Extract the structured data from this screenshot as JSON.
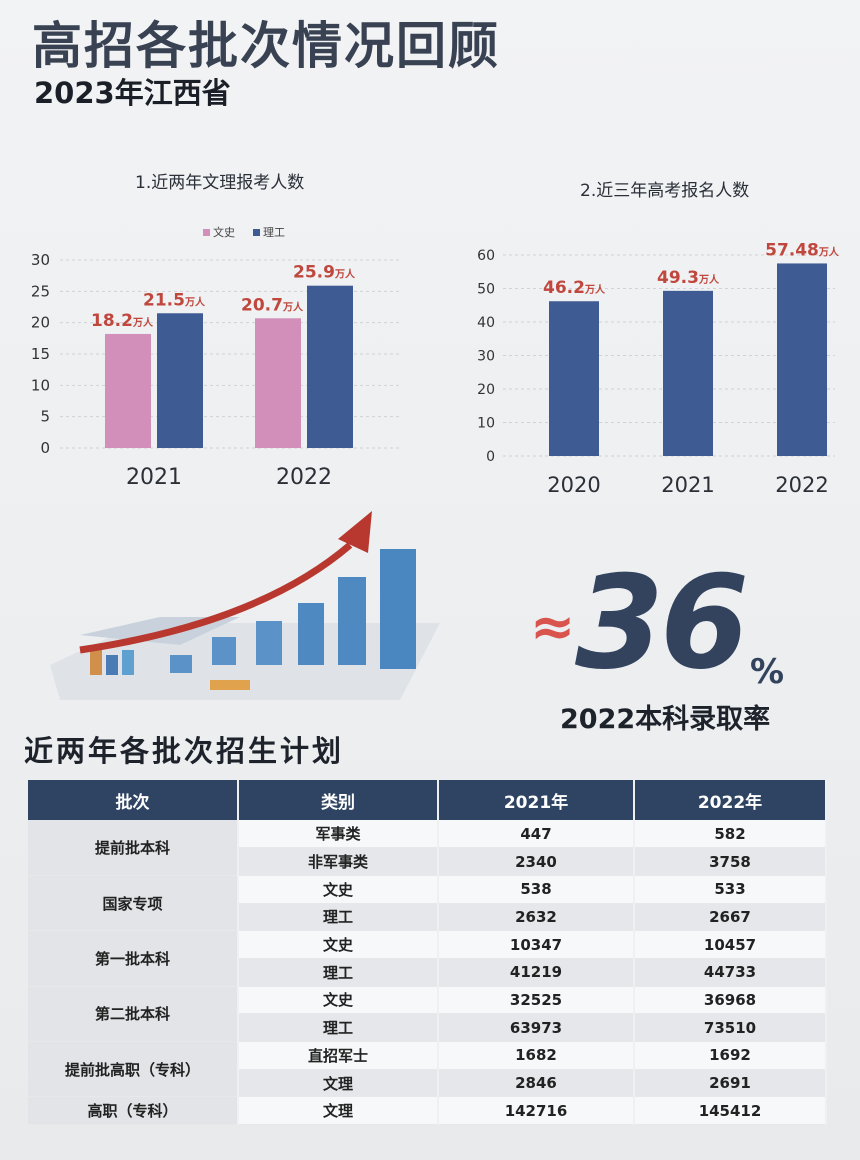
{
  "header": {
    "title": "高招各批次情况回顾",
    "subtitle": "2023年江西省"
  },
  "chart1_title": "1.近两年文理报考人数",
  "chart2_title": "2.近三年高考报名人数",
  "colors": {
    "wenshi": "#d18fb9",
    "ligong": "#3f5b94",
    "label": "#c0473d",
    "header": "#2f4462"
  },
  "chart_data": [
    {
      "type": "bar",
      "title": "1.近两年文理报考人数",
      "categories": [
        "2021",
        "2022"
      ],
      "series": [
        {
          "name": "文史",
          "values": [
            18.2,
            20.7
          ],
          "labels": [
            "18.2",
            "20.7"
          ]
        },
        {
          "name": "理工",
          "values": [
            21.5,
            25.9
          ],
          "labels": [
            "21.5",
            "25.9"
          ]
        }
      ],
      "unit": "万人",
      "ylim": [
        0,
        30
      ],
      "yticks": [
        "0",
        "5",
        "10",
        "15",
        "20",
        "25",
        "30"
      ],
      "legend": "top"
    },
    {
      "type": "bar",
      "title": "2.近三年高考报名人数",
      "categories": [
        "2020",
        "2021",
        "2022"
      ],
      "series": [
        {
          "values": [
            46.2,
            49.3,
            57.48
          ],
          "labels": [
            "46.2",
            "49.3",
            "57.48"
          ]
        }
      ],
      "unit": "万人",
      "ylim": [
        0,
        60
      ],
      "yticks": [
        "0",
        "10",
        "20",
        "30",
        "40",
        "50",
        "60"
      ]
    }
  ],
  "rate": {
    "approx": "≈",
    "value": "36",
    "percent": "%",
    "label": "2022本科录取率"
  },
  "plan": {
    "title": "近两年各批次招生计划",
    "headers": [
      "批次",
      "类别",
      "2021年",
      "2022年"
    ],
    "groups": [
      {
        "batch": "提前批本科",
        "rows": [
          [
            "军事类",
            "447",
            "582"
          ],
          [
            "非军事类",
            "2340",
            "3758"
          ]
        ]
      },
      {
        "batch": "国家专项",
        "rows": [
          [
            "文史",
            "538",
            "533"
          ],
          [
            "理工",
            "2632",
            "2667"
          ]
        ]
      },
      {
        "batch": "第一批本科",
        "rows": [
          [
            "文史",
            "10347",
            "10457"
          ],
          [
            "理工",
            "41219",
            "44733"
          ]
        ]
      },
      {
        "batch": "第二批本科",
        "rows": [
          [
            "文史",
            "32525",
            "36968"
          ],
          [
            "理工",
            "63973",
            "73510"
          ]
        ]
      },
      {
        "batch": "提前批高职（专科）",
        "rows": [
          [
            "直招军士",
            "1682",
            "1692"
          ],
          [
            "文理",
            "2846",
            "2691"
          ]
        ]
      },
      {
        "batch": "高职（专科）",
        "rows": [
          [
            "文理",
            "142716",
            "145412"
          ]
        ]
      }
    ]
  }
}
